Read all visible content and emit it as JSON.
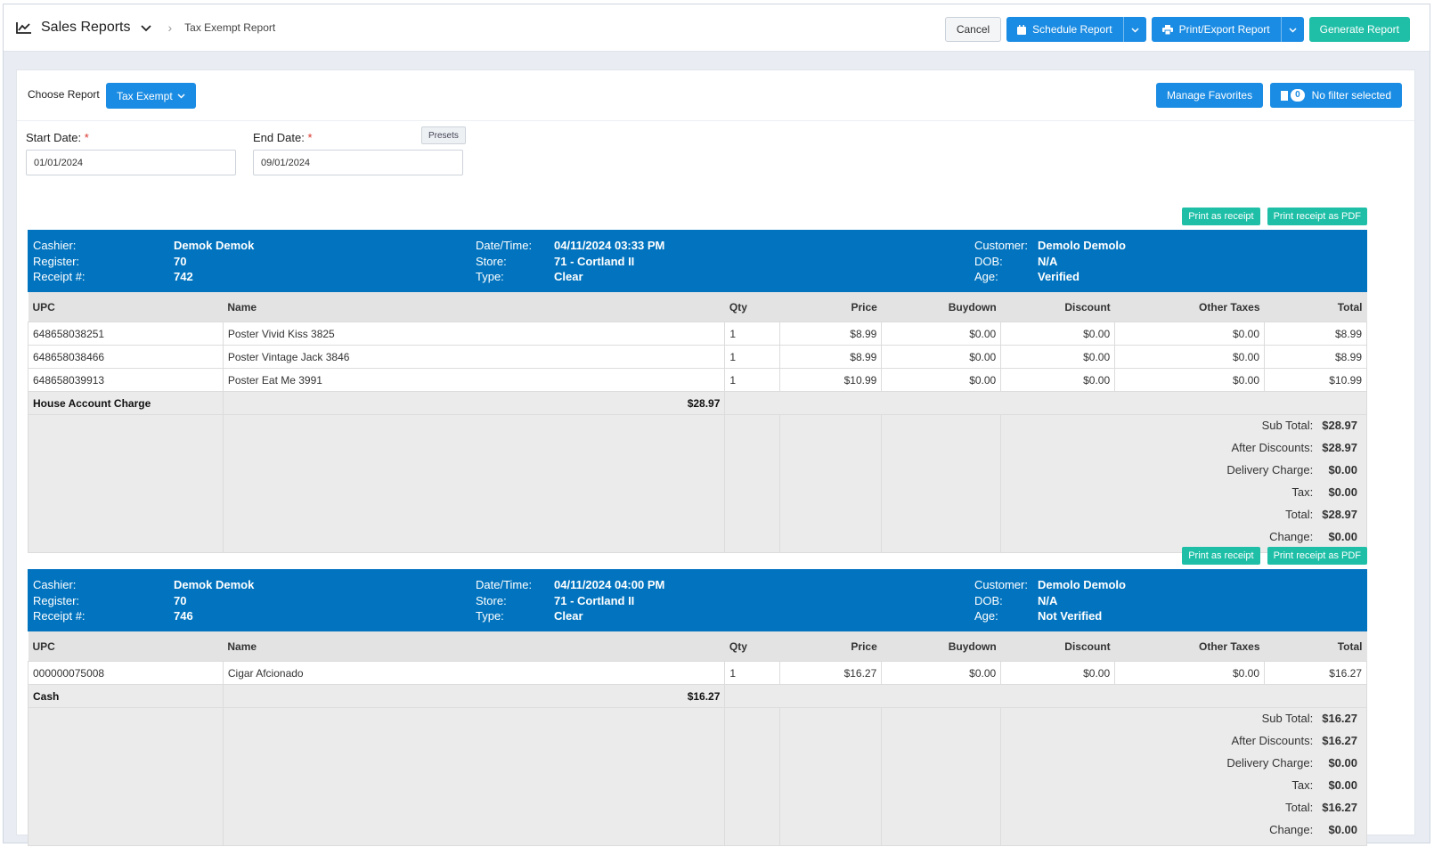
{
  "header": {
    "title": "Sales Reports",
    "subtitle": "Tax Exempt Report",
    "cancel": "Cancel",
    "schedule": "Schedule Report",
    "print_export": "Print/Export Report",
    "generate": "Generate Report"
  },
  "choose": {
    "label": "Choose Report",
    "selected": "Tax Exempt",
    "manage_favorites": "Manage Favorites",
    "filter_count": "0",
    "filter_text": "No filter selected"
  },
  "dates": {
    "start_label": "Start Date:",
    "start_value": "01/01/2024",
    "end_label": "End Date:",
    "end_value": "09/01/2024",
    "presets": "Presets",
    "required_mark": "*"
  },
  "labels": {
    "print_receipt": "Print as receipt",
    "print_pdf": "Print receipt as PDF",
    "cashier": "Cashier:",
    "register": "Register:",
    "receipt_no": "Receipt #:",
    "datetime": "Date/Time:",
    "store": "Store:",
    "type": "Type:",
    "customer": "Customer:",
    "dob": "DOB:",
    "age": "Age:",
    "columns": [
      "UPC",
      "Name",
      "Qty",
      "Price",
      "Buydown",
      "Discount",
      "Other Taxes",
      "Total"
    ],
    "sub_total": "Sub Total:",
    "after_discounts": "After Discounts:",
    "delivery_charge": "Delivery Charge:",
    "tax": "Tax:",
    "total": "Total:",
    "change": "Change:"
  },
  "receipts": [
    {
      "cashier": "Demok Demok",
      "register": "70",
      "receipt_no": "742",
      "datetime": "04/11/2024 03:33 PM",
      "store": "71 - Cortland II",
      "type": "Clear",
      "customer": "Demolo Demolo",
      "dob": "N/A",
      "age": "Verified",
      "items": [
        {
          "upc": "648658038251",
          "name": "Poster Vivid Kiss 3825",
          "qty": "1",
          "price": "$8.99",
          "buydown": "$0.00",
          "discount": "$0.00",
          "other_taxes": "$0.00",
          "total": "$8.99"
        },
        {
          "upc": "648658038466",
          "name": "Poster Vintage Jack 3846",
          "qty": "1",
          "price": "$8.99",
          "buydown": "$0.00",
          "discount": "$0.00",
          "other_taxes": "$0.00",
          "total": "$8.99"
        },
        {
          "upc": "648658039913",
          "name": "Poster Eat Me 3991",
          "qty": "1",
          "price": "$10.99",
          "buydown": "$0.00",
          "discount": "$0.00",
          "other_taxes": "$0.00",
          "total": "$10.99"
        }
      ],
      "payment_method": "House Account Charge",
      "payment_amount": "$28.97",
      "sub_total": "$28.97",
      "after_discounts": "$28.97",
      "delivery_charge": "$0.00",
      "tax": "$0.00",
      "total": "$28.97",
      "change": "$0.00"
    },
    {
      "cashier": "Demok Demok",
      "register": "70",
      "receipt_no": "746",
      "datetime": "04/11/2024 04:00 PM",
      "store": "71 - Cortland II",
      "type": "Clear",
      "customer": "Demolo Demolo",
      "dob": "N/A",
      "age": "Not Verified",
      "items": [
        {
          "upc": "000000075008",
          "name": "Cigar Afcionado",
          "qty": "1",
          "price": "$16.27",
          "buydown": "$0.00",
          "discount": "$0.00",
          "other_taxes": "$0.00",
          "total": "$16.27"
        }
      ],
      "payment_method": "Cash",
      "payment_amount": "$16.27",
      "sub_total": "$16.27",
      "after_discounts": "$16.27",
      "delivery_charge": "$0.00",
      "tax": "$0.00",
      "total": "$16.27",
      "change": "$0.00"
    }
  ]
}
